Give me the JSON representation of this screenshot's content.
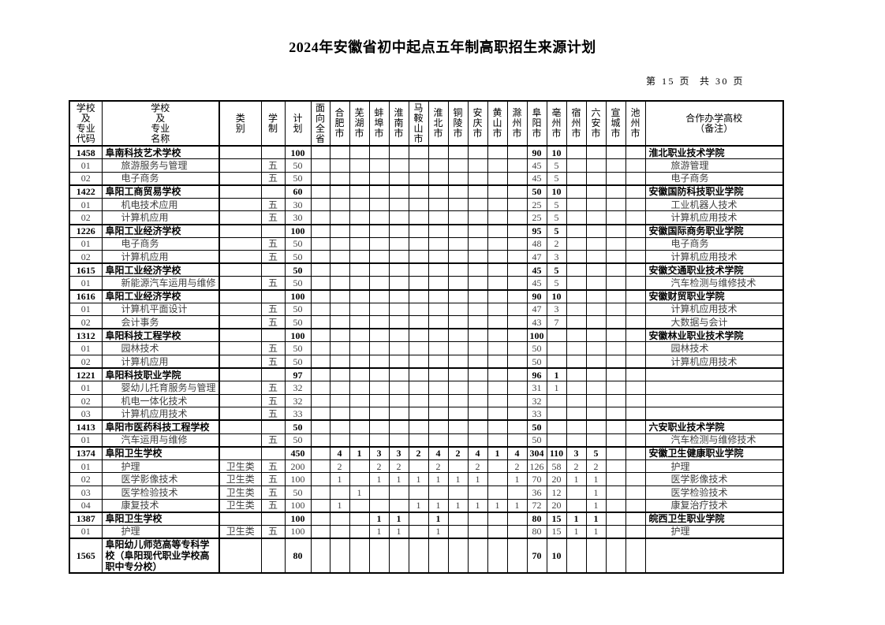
{
  "title": "2024年安徽省初中起点五年制高职招生来源计划",
  "page_info": "第 15 页  共 30 页",
  "table": {
    "columns": [
      {
        "id": "code",
        "label": "学校\n及\n专业\n代码"
      },
      {
        "id": "name",
        "label": "学校\n及\n专业\n名称"
      },
      {
        "id": "category",
        "label": "类\n别"
      },
      {
        "id": "duration",
        "label": "学\n制"
      },
      {
        "id": "plan",
        "label": "计\n划"
      },
      {
        "id": "province",
        "label": "面\n向\n全\n省"
      },
      {
        "id": "hefei",
        "label": "合\n肥\n市"
      },
      {
        "id": "wuhu",
        "label": "芜\n湖\n市"
      },
      {
        "id": "bengbu",
        "label": "蚌\n埠\n市"
      },
      {
        "id": "huainan",
        "label": "淮\n南\n市"
      },
      {
        "id": "maanshan",
        "label": "马\n鞍\n山\n市"
      },
      {
        "id": "huaibei",
        "label": "淮\n北\n市"
      },
      {
        "id": "tongling",
        "label": "铜\n陵\n市"
      },
      {
        "id": "anqing",
        "label": "安\n庆\n市"
      },
      {
        "id": "huangshan",
        "label": "黄\n山\n市"
      },
      {
        "id": "chuzhou",
        "label": "滁\n州\n市"
      },
      {
        "id": "fuyang",
        "label": "阜\n阳\n市"
      },
      {
        "id": "bozhou",
        "label": "亳\n州\n市"
      },
      {
        "id": "suzhou",
        "label": "宿\n州\n市"
      },
      {
        "id": "luan",
        "label": "六\n安\n市"
      },
      {
        "id": "xuancheng",
        "label": "宣\n城\n市"
      },
      {
        "id": "chizhou",
        "label": "池\n州\n市"
      },
      {
        "id": "remark",
        "label": "合作办学高校\n（备注）"
      }
    ],
    "rows": [
      {
        "kind": "school",
        "cells": [
          "1458",
          "阜南科技艺术学校",
          "",
          "",
          "100",
          "",
          "",
          "",
          "",
          "",
          "",
          "",
          "",
          "",
          "",
          "",
          "90",
          "10",
          "",
          "",
          "",
          "",
          "淮北职业技术学院"
        ]
      },
      {
        "kind": "major",
        "cells": [
          "01",
          "旅游服务与管理",
          "",
          "五",
          "50",
          "",
          "",
          "",
          "",
          "",
          "",
          "",
          "",
          "",
          "",
          "",
          "45",
          "5",
          "",
          "",
          "",
          "",
          "旅游管理"
        ]
      },
      {
        "kind": "major",
        "cells": [
          "02",
          "电子商务",
          "",
          "五",
          "50",
          "",
          "",
          "",
          "",
          "",
          "",
          "",
          "",
          "",
          "",
          "",
          "45",
          "5",
          "",
          "",
          "",
          "",
          "电子商务"
        ]
      },
      {
        "kind": "school",
        "cells": [
          "1422",
          "阜阳工商贸易学校",
          "",
          "",
          "60",
          "",
          "",
          "",
          "",
          "",
          "",
          "",
          "",
          "",
          "",
          "",
          "50",
          "10",
          "",
          "",
          "",
          "",
          "安徽国防科技职业学院"
        ]
      },
      {
        "kind": "major",
        "cells": [
          "01",
          "机电技术应用",
          "",
          "五",
          "30",
          "",
          "",
          "",
          "",
          "",
          "",
          "",
          "",
          "",
          "",
          "",
          "25",
          "5",
          "",
          "",
          "",
          "",
          "工业机器人技术"
        ]
      },
      {
        "kind": "major",
        "cells": [
          "02",
          "计算机应用",
          "",
          "五",
          "30",
          "",
          "",
          "",
          "",
          "",
          "",
          "",
          "",
          "",
          "",
          "",
          "25",
          "5",
          "",
          "",
          "",
          "",
          "计算机应用技术"
        ]
      },
      {
        "kind": "school",
        "cells": [
          "1226",
          "阜阳工业经济学校",
          "",
          "",
          "100",
          "",
          "",
          "",
          "",
          "",
          "",
          "",
          "",
          "",
          "",
          "",
          "95",
          "5",
          "",
          "",
          "",
          "",
          "安徽国际商务职业学院"
        ]
      },
      {
        "kind": "major",
        "cells": [
          "01",
          "电子商务",
          "",
          "五",
          "50",
          "",
          "",
          "",
          "",
          "",
          "",
          "",
          "",
          "",
          "",
          "",
          "48",
          "2",
          "",
          "",
          "",
          "",
          "电子商务"
        ]
      },
      {
        "kind": "major",
        "cells": [
          "02",
          "计算机应用",
          "",
          "五",
          "50",
          "",
          "",
          "",
          "",
          "",
          "",
          "",
          "",
          "",
          "",
          "",
          "47",
          "3",
          "",
          "",
          "",
          "",
          "计算机应用技术"
        ]
      },
      {
        "kind": "school",
        "cells": [
          "1615",
          "阜阳工业经济学校",
          "",
          "",
          "50",
          "",
          "",
          "",
          "",
          "",
          "",
          "",
          "",
          "",
          "",
          "",
          "45",
          "5",
          "",
          "",
          "",
          "",
          "安徽交通职业技术学院"
        ]
      },
      {
        "kind": "major",
        "cells": [
          "01",
          "新能源汽车运用与维修",
          "",
          "五",
          "50",
          "",
          "",
          "",
          "",
          "",
          "",
          "",
          "",
          "",
          "",
          "",
          "45",
          "5",
          "",
          "",
          "",
          "",
          "汽车检测与维修技术"
        ]
      },
      {
        "kind": "school",
        "cells": [
          "1616",
          "阜阳工业经济学校",
          "",
          "",
          "100",
          "",
          "",
          "",
          "",
          "",
          "",
          "",
          "",
          "",
          "",
          "",
          "90",
          "10",
          "",
          "",
          "",
          "",
          "安徽财贸职业学院"
        ]
      },
      {
        "kind": "major",
        "cells": [
          "01",
          "计算机平面设计",
          "",
          "五",
          "50",
          "",
          "",
          "",
          "",
          "",
          "",
          "",
          "",
          "",
          "",
          "",
          "47",
          "3",
          "",
          "",
          "",
          "",
          "计算机应用技术"
        ]
      },
      {
        "kind": "major",
        "cells": [
          "02",
          "会计事务",
          "",
          "五",
          "50",
          "",
          "",
          "",
          "",
          "",
          "",
          "",
          "",
          "",
          "",
          "",
          "43",
          "7",
          "",
          "",
          "",
          "",
          "大数据与会计"
        ]
      },
      {
        "kind": "school",
        "cells": [
          "1312",
          "阜阳科技工程学校",
          "",
          "",
          "100",
          "",
          "",
          "",
          "",
          "",
          "",
          "",
          "",
          "",
          "",
          "",
          "100",
          "",
          "",
          "",
          "",
          "",
          "安徽林业职业技术学院"
        ]
      },
      {
        "kind": "major",
        "cells": [
          "01",
          "园林技术",
          "",
          "五",
          "50",
          "",
          "",
          "",
          "",
          "",
          "",
          "",
          "",
          "",
          "",
          "",
          "50",
          "",
          "",
          "",
          "",
          "",
          "园林技术"
        ]
      },
      {
        "kind": "major",
        "cells": [
          "02",
          "计算机应用",
          "",
          "五",
          "50",
          "",
          "",
          "",
          "",
          "",
          "",
          "",
          "",
          "",
          "",
          "",
          "50",
          "",
          "",
          "",
          "",
          "",
          "计算机应用技术"
        ]
      },
      {
        "kind": "school",
        "cells": [
          "1221",
          "阜阳科技职业学院",
          "",
          "",
          "97",
          "",
          "",
          "",
          "",
          "",
          "",
          "",
          "",
          "",
          "",
          "",
          "96",
          "1",
          "",
          "",
          "",
          "",
          ""
        ]
      },
      {
        "kind": "major",
        "cells": [
          "01",
          "婴幼儿托育服务与管理",
          "",
          "五",
          "32",
          "",
          "",
          "",
          "",
          "",
          "",
          "",
          "",
          "",
          "",
          "",
          "31",
          "1",
          "",
          "",
          "",
          "",
          ""
        ]
      },
      {
        "kind": "major",
        "cells": [
          "02",
          "机电一体化技术",
          "",
          "五",
          "32",
          "",
          "",
          "",
          "",
          "",
          "",
          "",
          "",
          "",
          "",
          "",
          "32",
          "",
          "",
          "",
          "",
          "",
          ""
        ]
      },
      {
        "kind": "major",
        "cells": [
          "03",
          "计算机应用技术",
          "",
          "五",
          "33",
          "",
          "",
          "",
          "",
          "",
          "",
          "",
          "",
          "",
          "",
          "",
          "33",
          "",
          "",
          "",
          "",
          "",
          ""
        ]
      },
      {
        "kind": "school",
        "cells": [
          "1413",
          "阜阳市医药科技工程学校",
          "",
          "",
          "50",
          "",
          "",
          "",
          "",
          "",
          "",
          "",
          "",
          "",
          "",
          "",
          "50",
          "",
          "",
          "",
          "",
          "",
          "六安职业技术学院"
        ]
      },
      {
        "kind": "major",
        "cells": [
          "01",
          "汽车运用与维修",
          "",
          "五",
          "50",
          "",
          "",
          "",
          "",
          "",
          "",
          "",
          "",
          "",
          "",
          "",
          "50",
          "",
          "",
          "",
          "",
          "",
          "汽车检测与维修技术"
        ]
      },
      {
        "kind": "school",
        "cells": [
          "1374",
          "阜阳卫生学校",
          "",
          "",
          "450",
          "",
          "4",
          "1",
          "3",
          "3",
          "2",
          "4",
          "2",
          "4",
          "1",
          "4",
          "304",
          "110",
          "3",
          "5",
          "",
          "",
          "安徽卫生健康职业学院"
        ]
      },
      {
        "kind": "major",
        "cells": [
          "01",
          "护理",
          "卫生类",
          "五",
          "200",
          "",
          "2",
          "",
          "2",
          "2",
          "",
          "2",
          "",
          "2",
          "",
          "2",
          "126",
          "58",
          "2",
          "2",
          "",
          "",
          "护理"
        ]
      },
      {
        "kind": "major",
        "cells": [
          "02",
          "医学影像技术",
          "卫生类",
          "五",
          "100",
          "",
          "1",
          "",
          "1",
          "1",
          "1",
          "1",
          "1",
          "1",
          "",
          "1",
          "70",
          "20",
          "1",
          "1",
          "",
          "",
          "医学影像技术"
        ]
      },
      {
        "kind": "major",
        "cells": [
          "03",
          "医学检验技术",
          "卫生类",
          "五",
          "50",
          "",
          "",
          "1",
          "",
          "",
          "",
          "",
          "",
          "",
          "",
          "",
          "36",
          "12",
          "",
          "1",
          "",
          "",
          "医学检验技术"
        ]
      },
      {
        "kind": "major",
        "cells": [
          "04",
          "康复技术",
          "卫生类",
          "五",
          "100",
          "",
          "1",
          "",
          "",
          "",
          "1",
          "1",
          "1",
          "1",
          "1",
          "1",
          "72",
          "20",
          "",
          "1",
          "",
          "",
          "康复治疗技术"
        ]
      },
      {
        "kind": "school",
        "cells": [
          "1387",
          "阜阳卫生学校",
          "",
          "",
          "100",
          "",
          "",
          "",
          "1",
          "1",
          "",
          "1",
          "",
          "",
          "",
          "",
          "80",
          "15",
          "1",
          "1",
          "",
          "",
          "皖西卫生职业学院"
        ]
      },
      {
        "kind": "major",
        "cells": [
          "01",
          "护理",
          "卫生类",
          "五",
          "100",
          "",
          "",
          "",
          "1",
          "1",
          "",
          "1",
          "",
          "",
          "",
          "",
          "80",
          "15",
          "1",
          "1",
          "",
          "",
          "护理"
        ]
      },
      {
        "kind": "school",
        "tall": true,
        "cells": [
          "1565",
          "阜阳幼儿师范高等专科学校（阜阳现代职业学校高职中专分校）",
          "",
          "",
          "80",
          "",
          "",
          "",
          "",
          "",
          "",
          "",
          "",
          "",
          "",
          "",
          "70",
          "10",
          "",
          "",
          "",
          "",
          ""
        ]
      }
    ]
  }
}
